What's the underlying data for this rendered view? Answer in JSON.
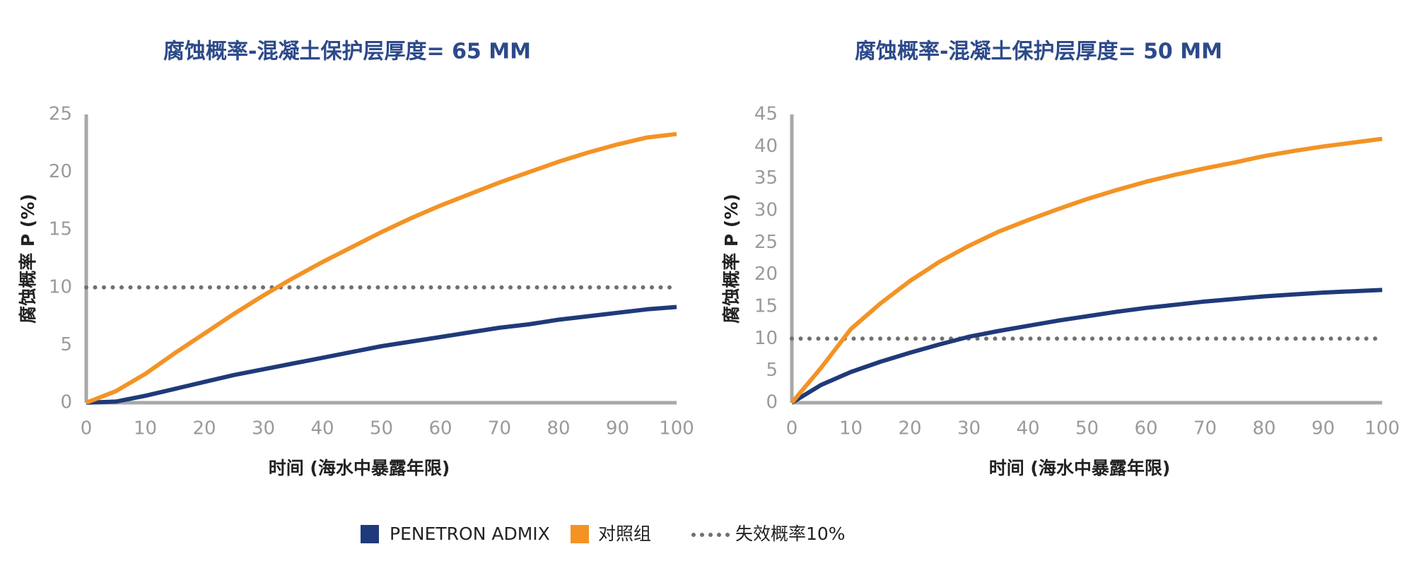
{
  "chart_data": [
    {
      "type": "line",
      "title": "腐蚀概率-混凝土保护层厚度= 65 MM",
      "x_label": "时间 (海水中暴露年限)",
      "y_label": "腐蚀概率 P (%)",
      "x": [
        0,
        5,
        10,
        15,
        20,
        25,
        30,
        35,
        40,
        45,
        50,
        55,
        60,
        65,
        70,
        75,
        80,
        85,
        90,
        95,
        100
      ],
      "series": [
        {
          "name": "PENETRON ADMIX",
          "color": "#1f3a7a",
          "values": [
            0,
            0.1,
            0.6,
            1.2,
            1.8,
            2.4,
            2.9,
            3.4,
            3.9,
            4.4,
            4.9,
            5.3,
            5.7,
            6.1,
            6.5,
            6.8,
            7.2,
            7.5,
            7.8,
            8.1,
            8.3
          ]
        },
        {
          "name": "对照组",
          "color": "#f39325",
          "values": [
            0,
            1.0,
            2.5,
            4.3,
            6.0,
            7.7,
            9.3,
            10.8,
            12.2,
            13.5,
            14.8,
            16.0,
            17.1,
            18.1,
            19.1,
            20.0,
            20.9,
            21.7,
            22.4,
            23.0,
            23.3
          ]
        },
        {
          "name": "失效概率10%",
          "color": "#707070",
          "dotted": true,
          "values": [
            10,
            10,
            10,
            10,
            10,
            10,
            10,
            10,
            10,
            10,
            10,
            10,
            10,
            10,
            10,
            10,
            10,
            10,
            10,
            10,
            10
          ]
        }
      ],
      "xlim": [
        0,
        100
      ],
      "xticks": [
        0,
        10,
        20,
        30,
        40,
        50,
        60,
        70,
        80,
        90,
        100
      ],
      "ylim": [
        0,
        25
      ],
      "yticks": [
        0,
        5,
        10,
        15,
        20,
        25
      ]
    },
    {
      "type": "line",
      "title": "腐蚀概率-混凝土保护层厚度= 50 MM",
      "x_label": "时间 (海水中暴露年限)",
      "y_label": "腐蚀概率 P (%)",
      "x": [
        0,
        5,
        10,
        15,
        20,
        25,
        30,
        35,
        40,
        45,
        50,
        55,
        60,
        65,
        70,
        75,
        80,
        85,
        90,
        95,
        100
      ],
      "series": [
        {
          "name": "PENETRON ADMIX",
          "color": "#1f3a7a",
          "values": [
            0,
            2.8,
            4.8,
            6.4,
            7.8,
            9.1,
            10.3,
            11.2,
            12.0,
            12.8,
            13.5,
            14.2,
            14.8,
            15.3,
            15.8,
            16.2,
            16.6,
            16.9,
            17.2,
            17.4,
            17.6
          ]
        },
        {
          "name": "对照组",
          "color": "#f39325",
          "values": [
            0,
            5.5,
            11.5,
            15.5,
            19,
            22,
            24.5,
            26.7,
            28.5,
            30.2,
            31.8,
            33.2,
            34.5,
            35.6,
            36.6,
            37.5,
            38.5,
            39.3,
            40,
            40.6,
            41.2
          ]
        },
        {
          "name": "失效概率10%",
          "color": "#707070",
          "dotted": true,
          "values": [
            10,
            10,
            10,
            10,
            10,
            10,
            10,
            10,
            10,
            10,
            10,
            10,
            10,
            10,
            10,
            10,
            10,
            10,
            10,
            10,
            10
          ]
        }
      ],
      "xlim": [
        0,
        100
      ],
      "xticks": [
        0,
        10,
        20,
        30,
        40,
        50,
        60,
        70,
        80,
        90,
        100
      ],
      "ylim": [
        0,
        45
      ],
      "yticks": [
        0,
        5,
        10,
        15,
        20,
        25,
        30,
        35,
        40,
        45
      ]
    }
  ]
}
